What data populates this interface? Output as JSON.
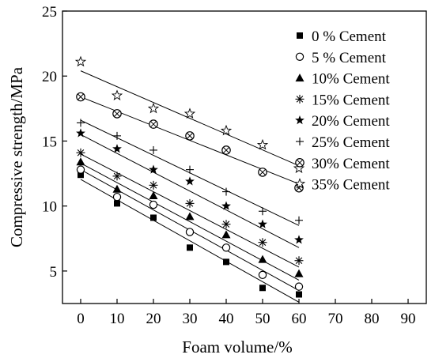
{
  "chart_data": {
    "type": "scatter",
    "title": "",
    "xlabel": "Foam volume/%",
    "ylabel": "Compressive strength/MPa",
    "xlim": [
      -5,
      95
    ],
    "ylim": [
      2.5,
      25
    ],
    "x_ticks": [
      0,
      10,
      20,
      30,
      40,
      50,
      60,
      70,
      80,
      90
    ],
    "y_ticks": [
      5,
      10,
      15,
      20,
      25
    ],
    "x_tick_labels": [
      "0",
      "10",
      "20",
      "30",
      "40",
      "50",
      "60",
      "70",
      "80",
      "90"
    ],
    "y_tick_labels": [
      "5",
      "10",
      "15",
      "20",
      "25"
    ],
    "grid": false,
    "legend_position": "top-right",
    "trendlines": "linear fit per series",
    "x": [
      0,
      10,
      20,
      30,
      40,
      50,
      60
    ],
    "series": [
      {
        "name": "0 % Cement",
        "marker": "filled-square",
        "values": [
          12.4,
          10.2,
          9.1,
          6.8,
          5.7,
          3.7,
          3.2
        ],
        "fit": [
          12.05,
          2.6
        ]
      },
      {
        "name": "5 % Cement",
        "marker": "open-circle",
        "values": [
          12.8,
          10.7,
          10.1,
          8.0,
          6.8,
          4.7,
          3.8
        ],
        "fit": [
          12.8,
          3.5
        ]
      },
      {
        "name": "10% Cement",
        "marker": "filled-triangle",
        "values": [
          13.4,
          11.3,
          10.8,
          9.2,
          7.8,
          5.9,
          4.8
        ],
        "fit": [
          13.3,
          4.3
        ]
      },
      {
        "name": "15% Cement",
        "marker": "asterisk",
        "values": [
          14.1,
          12.3,
          11.6,
          10.2,
          8.6,
          7.2,
          5.8
        ],
        "fit": [
          14.0,
          5.3
        ]
      },
      {
        "name": "20% Cement",
        "marker": "filled-star",
        "values": [
          15.6,
          14.4,
          12.8,
          11.9,
          10.0,
          8.6,
          7.4
        ],
        "fit": [
          15.5,
          6.8
        ]
      },
      {
        "name": "25% Cement",
        "marker": "plus",
        "values": [
          16.4,
          15.4,
          14.3,
          12.8,
          11.1,
          9.6,
          8.9
        ],
        "fit": [
          16.6,
          8.5
        ]
      },
      {
        "name": "30% Cement",
        "marker": "circle-x",
        "values": [
          18.4,
          17.1,
          16.3,
          15.4,
          14.3,
          12.6,
          11.4
        ],
        "fit": [
          18.4,
          11.7
        ]
      },
      {
        "name": "35% Cement",
        "marker": "open-star",
        "values": [
          21.1,
          18.5,
          17.5,
          17.1,
          15.8,
          14.7,
          12.9
        ],
        "fit": [
          20.4,
          13.1
        ]
      }
    ]
  }
}
